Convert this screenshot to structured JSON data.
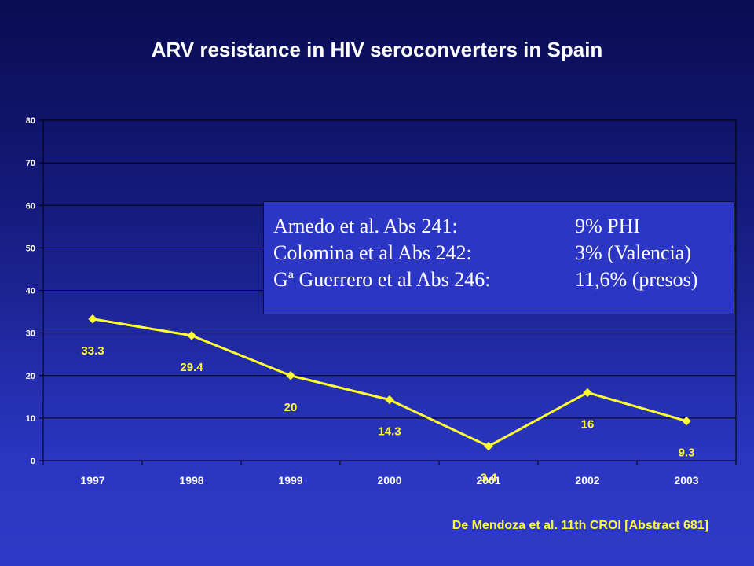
{
  "chart_data": {
    "type": "line",
    "title": "ARV resistance in HIV seroconverters in Spain",
    "categories": [
      "1997",
      "1998",
      "1999",
      "2000",
      "2001",
      "2002",
      "2003"
    ],
    "series": [
      {
        "values": [
          33.3,
          29.4,
          20,
          14.3,
          3.4,
          16,
          9.3
        ],
        "labels": [
          "33.3",
          "29.4",
          "20",
          "14.3",
          "3,4",
          "16",
          "9.3"
        ],
        "color": "#ffff33"
      }
    ],
    "yticks": [
      "0",
      "10",
      "20",
      "30",
      "40",
      "50",
      "60",
      "70",
      "80"
    ],
    "ylim": [
      0,
      80
    ],
    "grid": true,
    "annotations": [
      {
        "left": "Arnedo et al. Abs 241:",
        "right": "9% PHI"
      },
      {
        "left": "Colomina et al Abs 242:",
        "right": "3% (Valencia)"
      },
      {
        "left": "Gª Guerrero et al Abs 246:",
        "right": "11,6% (presos)"
      }
    ],
    "source": "De Mendoza et al. 11th CROI [Abstract 681]"
  },
  "colors": {
    "line": "#ffff33",
    "axis": "#000000",
    "text": "#ffffff"
  }
}
